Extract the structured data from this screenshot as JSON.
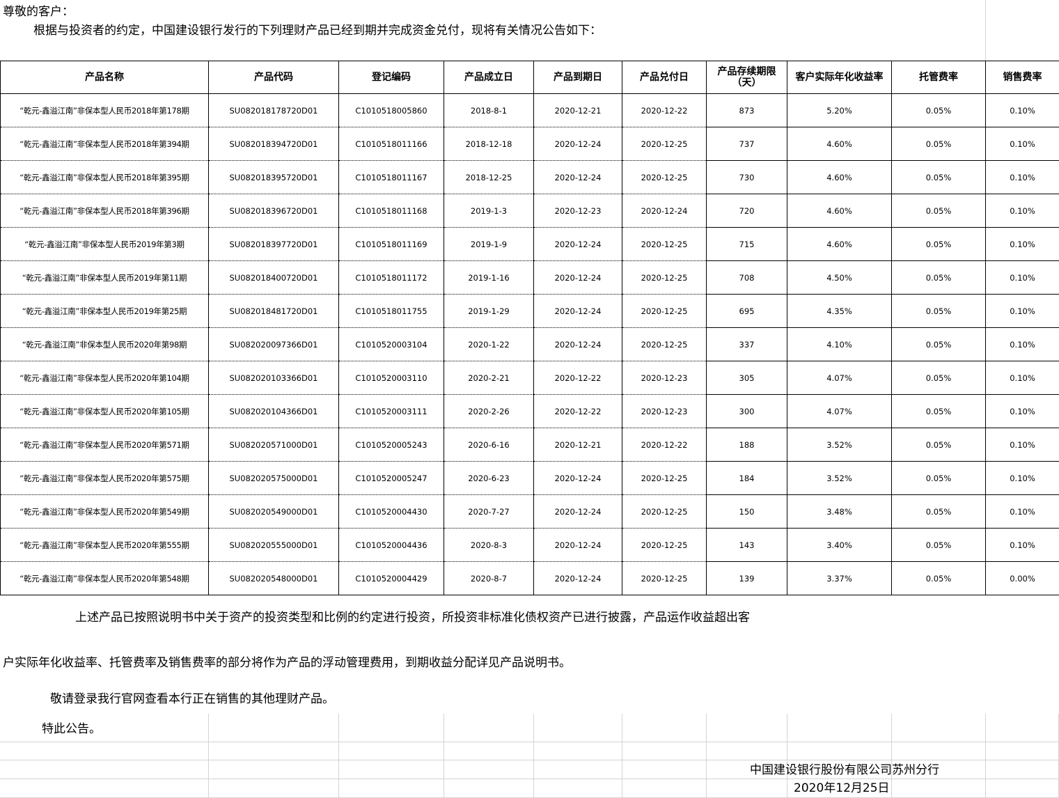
{
  "greeting": "尊敬的客户：",
  "intro": "根据与投资者的约定，中国建设银行发行的下列理财产品已经到期并完成资金兑付，现将有关情况公告如下：",
  "table": {
    "headers": [
      "产品名称",
      "产品代码",
      "登记编码",
      "产品成立日",
      "产品到期日",
      "产品兑付日",
      "产品存续期限（天）",
      "客户实际年化收益率",
      "托管费率",
      "销售费率"
    ],
    "rows": [
      [
        "“乾元-鑫溢江南”非保本型人民币2018年第178期",
        "SU082018178720D01",
        "C1010518005860",
        "2018-8-1",
        "2020-12-21",
        "2020-12-22",
        "873",
        "5.20%",
        "0.05%",
        "0.10%"
      ],
      [
        "“乾元-鑫溢江南”非保本型人民币2018年第394期",
        "SU082018394720D01",
        "C1010518011166",
        "2018-12-18",
        "2020-12-24",
        "2020-12-25",
        "737",
        "4.60%",
        "0.05%",
        "0.10%"
      ],
      [
        "“乾元-鑫溢江南”非保本型人民币2018年第395期",
        "SU082018395720D01",
        "C1010518011167",
        "2018-12-25",
        "2020-12-24",
        "2020-12-25",
        "730",
        "4.60%",
        "0.05%",
        "0.10%"
      ],
      [
        "“乾元-鑫溢江南”非保本型人民币2018年第396期",
        "SU082018396720D01",
        "C1010518011168",
        "2019-1-3",
        "2020-12-23",
        "2020-12-24",
        "720",
        "4.60%",
        "0.05%",
        "0.10%"
      ],
      [
        "“乾元-鑫溢江南”非保本型人民币2019年第3期",
        "SU082018397720D01",
        "C1010518011169",
        "2019-1-9",
        "2020-12-24",
        "2020-12-25",
        "715",
        "4.60%",
        "0.05%",
        "0.10%"
      ],
      [
        "“乾元-鑫溢江南”非保本型人民币2019年第11期",
        "SU082018400720D01",
        "C1010518011172",
        "2019-1-16",
        "2020-12-24",
        "2020-12-25",
        "708",
        "4.50%",
        "0.05%",
        "0.10%"
      ],
      [
        "“乾元-鑫溢江南”非保本型人民币2019年第25期",
        "SU082018481720D01",
        "C1010518011755",
        "2019-1-29",
        "2020-12-24",
        "2020-12-25",
        "695",
        "4.35%",
        "0.05%",
        "0.10%"
      ],
      [
        "“乾元-鑫溢江南”非保本型人民币2020年第98期",
        "SU082020097366D01",
        "C1010520003104",
        "2020-1-22",
        "2020-12-24",
        "2020-12-25",
        "337",
        "4.10%",
        "0.05%",
        "0.10%"
      ],
      [
        "“乾元-鑫溢江南”非保本型人民币2020年第104期",
        "SU082020103366D01",
        "C1010520003110",
        "2020-2-21",
        "2020-12-22",
        "2020-12-23",
        "305",
        "4.07%",
        "0.05%",
        "0.10%"
      ],
      [
        "“乾元-鑫溢江南”非保本型人民币2020年第105期",
        "SU082020104366D01",
        "C1010520003111",
        "2020-2-26",
        "2020-12-22",
        "2020-12-23",
        "300",
        "4.07%",
        "0.05%",
        "0.10%"
      ],
      [
        "“乾元-鑫溢江南”非保本型人民币2020年第571期",
        "SU082020571000D01",
        "C1010520005243",
        "2020-6-16",
        "2020-12-21",
        "2020-12-22",
        "188",
        "3.52%",
        "0.05%",
        "0.10%"
      ],
      [
        "“乾元-鑫溢江南”非保本型人民币2020年第575期",
        "SU082020575000D01",
        "C1010520005247",
        "2020-6-23",
        "2020-12-24",
        "2020-12-25",
        "184",
        "3.52%",
        "0.05%",
        "0.10%"
      ],
      [
        "“乾元-鑫溢江南”非保本型人民币2020年第549期",
        "SU082020549000D01",
        "C1010520004430",
        "2020-7-27",
        "2020-12-24",
        "2020-12-25",
        "150",
        "3.48%",
        "0.05%",
        "0.10%"
      ],
      [
        "“乾元-鑫溢江南”非保本型人民币2020年第555期",
        "SU082020555000D01",
        "C1010520004436",
        "2020-8-3",
        "2020-12-24",
        "2020-12-25",
        "143",
        "3.40%",
        "0.05%",
        "0.10%"
      ],
      [
        "“乾元-鑫溢江南”非保本型人民币2020年第548期",
        "SU082020548000D01",
        "C1010520004429",
        "2020-8-7",
        "2020-12-24",
        "2020-12-25",
        "139",
        "3.37%",
        "0.05%",
        "0.00%"
      ]
    ]
  },
  "notes": {
    "para1_line1": "上述产品已按照说明书中关于资产的投资类型和比例的约定进行投资，所投资非标准化债权资产已进行披露，产品运作收益超出客",
    "para1_line2": "户实际年化收益率、托管费率及销售费率的部分将作为产品的浮动管理费用，到期收益分配详见产品说明书。",
    "para2": "敬请登录我行官网查看本行正在销售的其他理财产品。",
    "closing": "特此公告。"
  },
  "signature": {
    "issuer": "中国建设银行股份有限公司苏州分行",
    "date": "2020年12月25日"
  }
}
